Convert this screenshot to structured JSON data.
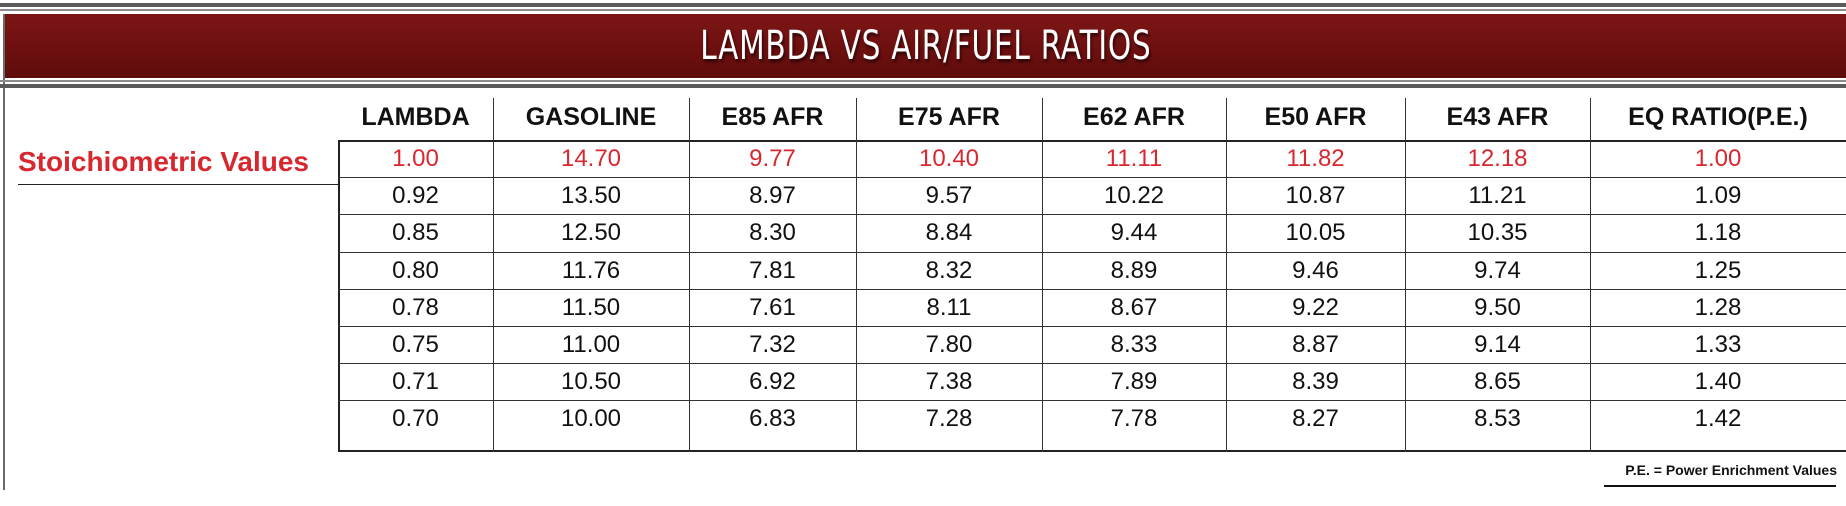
{
  "title": "LAMBDA VS AIR/FUEL RATIOS",
  "row_label": "Stoichiometric Values",
  "columns": [
    "LAMBDA",
    "GASOLINE",
    "E85 AFR",
    "E75 AFR",
    "E62 AFR",
    "E50 AFR",
    "E43 AFR",
    "EQ RATIO(P.E.)"
  ],
  "rows": [
    [
      "1.00",
      "14.70",
      "9.77",
      "10.40",
      "11.11",
      "11.82",
      "12.18",
      "1.00"
    ],
    [
      "0.92",
      "13.50",
      "8.97",
      "9.57",
      "10.22",
      "10.87",
      "11.21",
      "1.09"
    ],
    [
      "0.85",
      "12.50",
      "8.30",
      "8.84",
      "9.44",
      "10.05",
      "10.35",
      "1.18"
    ],
    [
      "0.80",
      "11.76",
      "7.81",
      "8.32",
      "8.89",
      "9.46",
      "9.74",
      "1.25"
    ],
    [
      "0.78",
      "11.50",
      "7.61",
      "8.11",
      "8.67",
      "9.22",
      "9.50",
      "1.28"
    ],
    [
      "0.75",
      "11.00",
      "7.32",
      "7.80",
      "8.33",
      "8.87",
      "9.14",
      "1.33"
    ],
    [
      "0.71",
      "10.50",
      "6.92",
      "7.38",
      "7.89",
      "8.39",
      "8.65",
      "1.40"
    ],
    [
      "0.70",
      "10.00",
      "6.83",
      "7.28",
      "7.78",
      "8.27",
      "8.53",
      "1.42"
    ]
  ],
  "footnote": "P.E. = Power Enrichment Values",
  "colors": {
    "title_band": "#6c0f0f",
    "stoichiometric": "#d7282f",
    "text": "#111111"
  }
}
